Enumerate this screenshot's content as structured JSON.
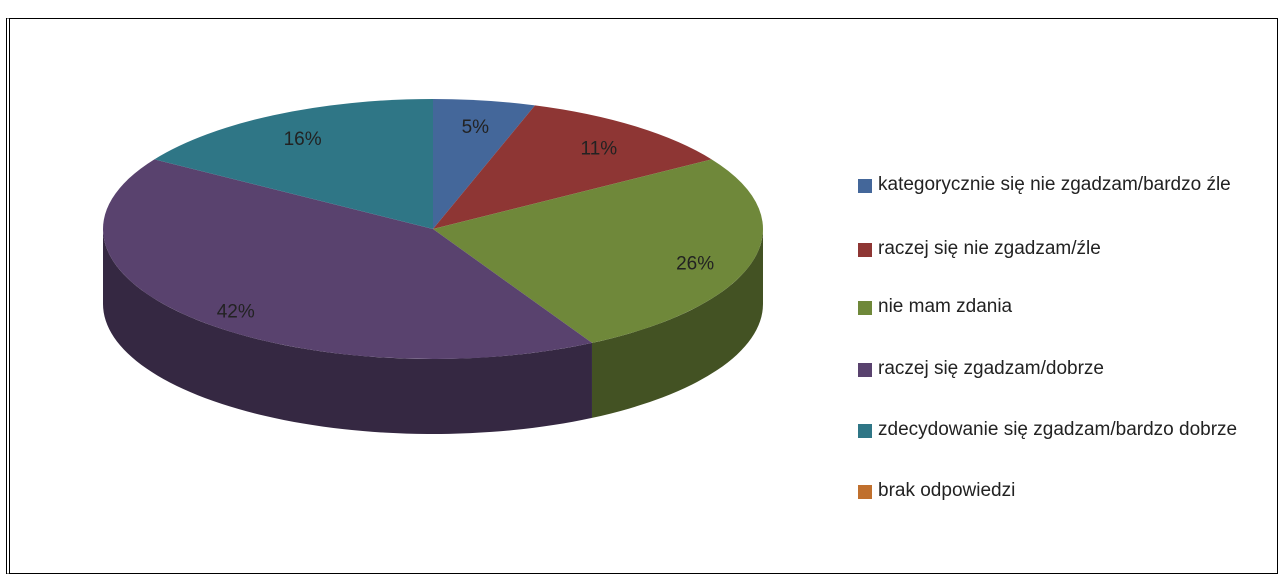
{
  "chart_data": {
    "type": "pie",
    "categories": [
      "kategorycznie się nie zgadzam/bardzo źle",
      "raczej się nie zgadzam/źle",
      "nie mam zdania",
      "raczej się zgadzam/dobrze",
      "zdecydowanie się zgadzam/bardzo dobrze",
      "brak odpowiedzi"
    ],
    "values": [
      5,
      11,
      26,
      42,
      16,
      0
    ],
    "value_labels": [
      "5%",
      "11%",
      "26%",
      "42%",
      "16%",
      null
    ],
    "colors": [
      "#44679a",
      "#8e3634",
      "#6f883a",
      "#59426e",
      "#2f7686",
      "#c0702e"
    ],
    "legend": "right"
  }
}
